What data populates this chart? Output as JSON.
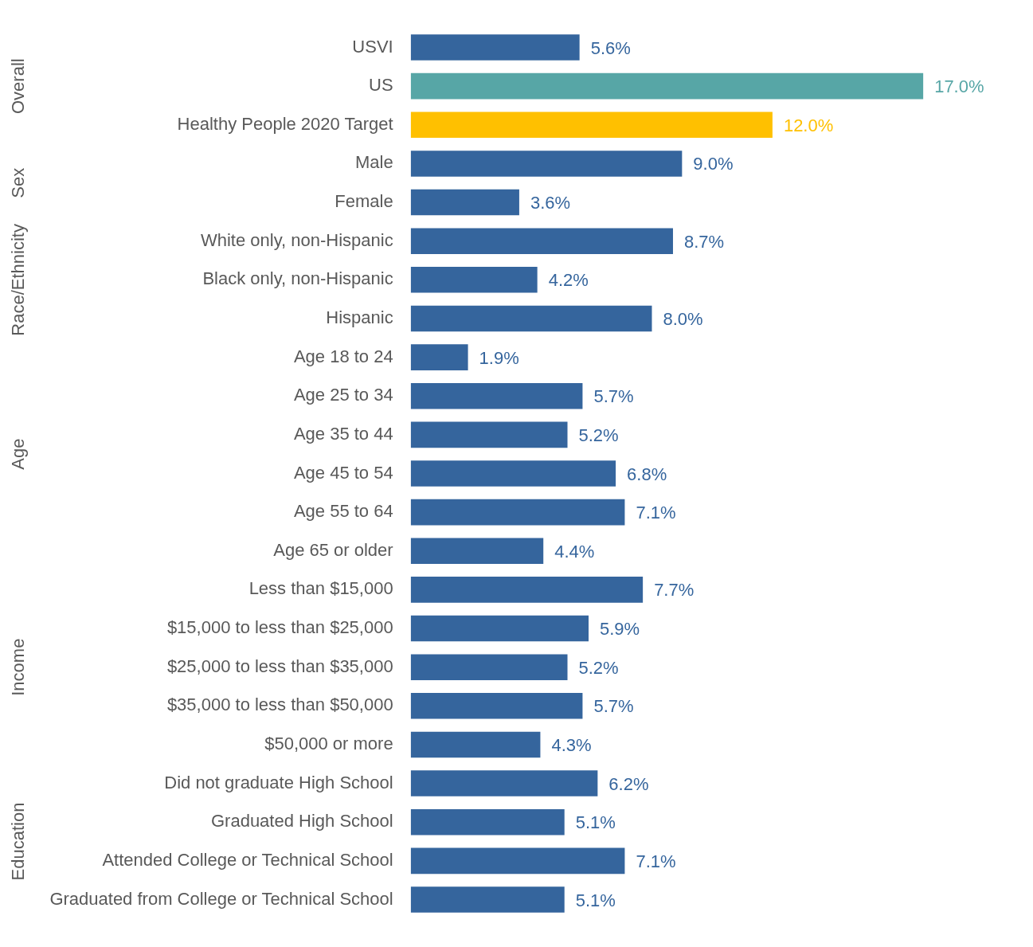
{
  "chart_data": {
    "type": "bar",
    "orientation": "horizontal",
    "categories": [
      "USVI",
      "US",
      "Healthy People 2020 Target",
      "Male",
      "Female",
      "White only, non-Hispanic",
      "Black only, non-Hispanic",
      "Hispanic",
      "Age 18 to 24",
      "Age 25 to 34",
      "Age 35 to 44",
      "Age 45 to 54",
      "Age 55 to 64",
      "Age 65 or older",
      "Less than $15,000",
      "$15,000 to less than $25,000",
      "$25,000 to less than $35,000",
      "$35,000 to less than $50,000",
      "$50,000 or more",
      "Did not graduate High School",
      "Graduated High School",
      "Attended College or Technical School",
      "Graduated from College or Technical School"
    ],
    "values": [
      5.6,
      17.0,
      12.0,
      9.0,
      3.6,
      8.7,
      4.2,
      8.0,
      1.9,
      5.7,
      5.2,
      6.8,
      7.1,
      4.4,
      7.7,
      5.9,
      5.2,
      5.7,
      4.3,
      6.2,
      5.1,
      7.1,
      5.1
    ],
    "value_labels": [
      "5.6%",
      "17.0%",
      "12.0%",
      "9.0%",
      "3.6%",
      "8.7%",
      "4.2%",
      "8.0%",
      "1.9%",
      "5.7%",
      "5.2%",
      "6.8%",
      "7.1%",
      "4.4%",
      "7.7%",
      "5.9%",
      "5.2%",
      "5.7%",
      "4.3%",
      "6.2%",
      "5.1%",
      "7.1%",
      "5.1%"
    ],
    "colors": [
      "#35659d",
      "#57a6a6",
      "#ffc000",
      "#35659d",
      "#35659d",
      "#35659d",
      "#35659d",
      "#35659d",
      "#35659d",
      "#35659d",
      "#35659d",
      "#35659d",
      "#35659d",
      "#35659d",
      "#35659d",
      "#35659d",
      "#35659d",
      "#35659d",
      "#35659d",
      "#35659d",
      "#35659d",
      "#35659d",
      "#35659d"
    ],
    "annotations": [
      "Overall",
      "Sex",
      "Race/Ethnicity",
      "Age",
      "Income",
      "Education"
    ],
    "legend": false,
    "grid": false,
    "tick_labels": "y"
  }
}
